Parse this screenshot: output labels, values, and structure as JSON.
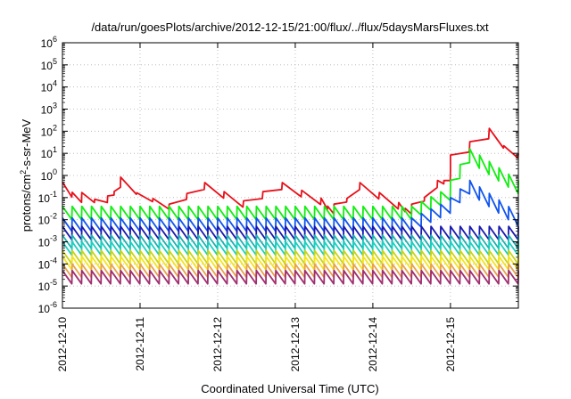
{
  "chart_data": {
    "type": "line",
    "title": "/data/run/goesPlots/archive/2012-12-15/21:00/flux/../flux/5daysMarsFluxes.txt",
    "xlabel": "Coordinated Universal Time (UTC)",
    "ylabel": "protons/cm²-s-sr-MeV",
    "ylabel_parts": {
      "pre": "protons/cm",
      "sup": "2",
      "post": "-s-sr-MeV"
    },
    "yscale": "log",
    "ylim_exponents": [
      -6,
      6
    ],
    "ytick_base": "10",
    "yticks": [
      "-6",
      "-5",
      "-4",
      "-3",
      "-2",
      "-1",
      "0",
      "1",
      "2",
      "3",
      "4",
      "5",
      "6"
    ],
    "xlim_days": [
      "2012-12-10",
      "2012-12-15 21:00"
    ],
    "xticks": [
      "2012-12-10",
      "2012-12-11",
      "2012-12-12",
      "2012-12-13",
      "2012-12-14",
      "2012-12-15"
    ],
    "grid": true,
    "series": [
      {
        "color": "#e8111b",
        "base_log10": -0.7,
        "ripple_amplitude": 0.45,
        "sawtooth_period_hours": 6,
        "segments": [
          {
            "from": "2012-12-10 00:00",
            "to": "2012-12-10 06:00",
            "start": 0.3,
            "end": 0.1
          },
          {
            "from": "2012-12-10 06:00",
            "to": "2012-12-10 14:00",
            "start": 0.1,
            "end": 0.1
          },
          {
            "from": "2012-12-10 14:00",
            "to": "2012-12-10 18:00",
            "start": 0.1,
            "end": 0.5
          },
          {
            "from": "2012-12-10 18:00",
            "to": "2012-12-11 09:00",
            "start": 0.5,
            "end": 0.05
          },
          {
            "from": "2012-12-11 09:00",
            "to": "2012-12-11 20:00",
            "start": 0.05,
            "end": 0.4
          },
          {
            "from": "2012-12-11 20:00",
            "to": "2012-12-12 08:00",
            "start": 0.4,
            "end": 0.06
          },
          {
            "from": "2012-12-12 08:00",
            "to": "2012-12-12 20:00",
            "start": 0.06,
            "end": 0.4
          },
          {
            "from": "2012-12-12 20:00",
            "to": "2012-12-13 08:00",
            "start": 0.4,
            "end": 0.08
          },
          {
            "from": "2012-12-13 08:00",
            "to": "2012-12-13 12:00",
            "start": 0.08,
            "end": 0.03
          },
          {
            "from": "2012-12-13 12:00",
            "to": "2012-12-13 20:00",
            "start": 0.03,
            "end": 0.4
          },
          {
            "from": "2012-12-13 20:00",
            "to": "2012-12-14 08:00",
            "start": 0.4,
            "end": 0.05
          },
          {
            "from": "2012-12-14 08:00",
            "to": "2012-12-14 12:00",
            "start": 0.05,
            "end": 0.03
          },
          {
            "from": "2012-12-14 12:00",
            "to": "2012-12-14 20:00",
            "start": 0.03,
            "end": 0.5
          },
          {
            "from": "2012-12-14 20:00",
            "to": "2012-12-15 00:00",
            "start": 0.5,
            "end": 1.0
          },
          {
            "from": "2012-12-15 00:00",
            "to": "2012-12-15 12:00",
            "start": 5,
            "end": 80
          },
          {
            "from": "2012-12-15 12:00",
            "to": "2012-12-15 21:00",
            "start": 80,
            "end": 10
          }
        ]
      },
      {
        "color": "#11ee11",
        "base_log10": -1.7,
        "segments": [
          {
            "from": "2012-12-10 00:00",
            "to": "2012-12-14 12:00",
            "start": 0.02,
            "end": 0.02
          },
          {
            "from": "2012-12-14 12:00",
            "to": "2012-12-15 00:00",
            "start": 0.02,
            "end": 0.15
          },
          {
            "from": "2012-12-15 00:00",
            "to": "2012-12-15 06:00",
            "start": 0.3,
            "end": 8
          },
          {
            "from": "2012-12-15 06:00",
            "to": "2012-12-15 21:00",
            "start": 8,
            "end": 0.3
          }
        ]
      },
      {
        "color": "#1155ee",
        "base_log10": -2.2,
        "segments": [
          {
            "from": "2012-12-10 00:00",
            "to": "2012-12-14 12:00",
            "start": 0.006,
            "end": 0.006
          },
          {
            "from": "2012-12-14 12:00",
            "to": "2012-12-15 00:00",
            "start": 0.006,
            "end": 0.04
          },
          {
            "from": "2012-12-15 00:00",
            "to": "2012-12-15 06:00",
            "start": 0.05,
            "end": 0.3
          },
          {
            "from": "2012-12-15 06:00",
            "to": "2012-12-15 21:00",
            "start": 0.3,
            "end": 0.01
          }
        ]
      },
      {
        "color": "#1a1ab0",
        "base_log10": -2.6,
        "segments": [
          {
            "from": "2012-12-10 00:00",
            "to": "2012-12-15 21:00",
            "start": 0.0025,
            "end": 0.0025
          }
        ]
      },
      {
        "color": "#1fb0b0",
        "base_log10": -3.0,
        "segments": [
          {
            "from": "2012-12-10 00:00",
            "to": "2012-12-15 21:00",
            "start": 0.001,
            "end": 0.001
          }
        ]
      },
      {
        "color": "#1ad0c0",
        "base_log10": -3.3,
        "segments": [
          {
            "from": "2012-12-10 00:00",
            "to": "2012-12-15 21:00",
            "start": 0.0005,
            "end": 0.0005
          }
        ]
      },
      {
        "color": "#c8d418",
        "base_log10": -3.7,
        "segments": [
          {
            "from": "2012-12-10 00:00",
            "to": "2012-12-15 21:00",
            "start": 0.0002,
            "end": 0.0002
          }
        ]
      },
      {
        "color": "#f5e51a",
        "base_log10": -3.95,
        "segments": [
          {
            "from": "2012-12-10 00:00",
            "to": "2012-12-15 21:00",
            "start": 0.00011,
            "end": 0.00011
          }
        ]
      },
      {
        "color": "#e8a24a",
        "base_log10": -4.3,
        "segments": [
          {
            "from": "2012-12-10 00:00",
            "to": "2012-12-15 21:00",
            "start": 5e-05,
            "end": 5e-05
          }
        ]
      },
      {
        "color": "#a03070",
        "base_log10": -4.6,
        "segments": [
          {
            "from": "2012-12-10 00:00",
            "to": "2012-12-15 21:00",
            "start": 2.5e-05,
            "end": 2.5e-05
          }
        ]
      }
    ]
  }
}
